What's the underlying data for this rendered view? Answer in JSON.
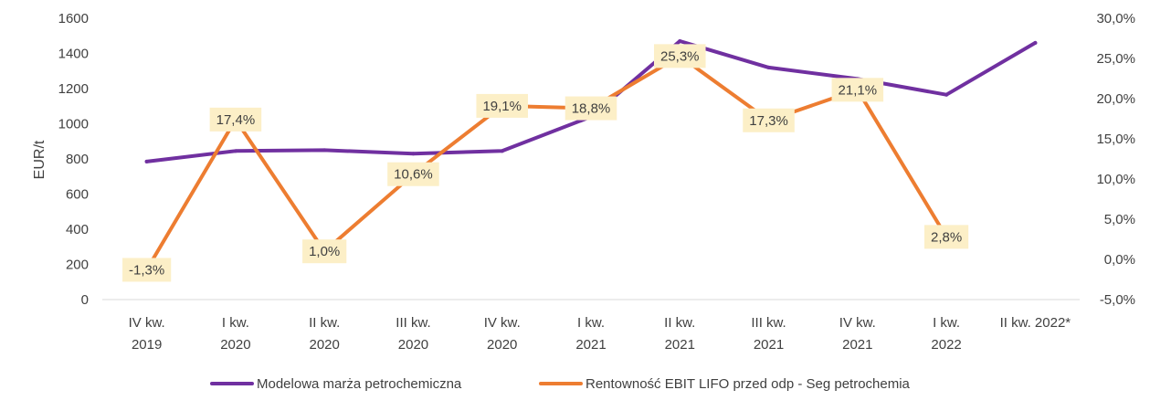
{
  "chart_data": {
    "type": "line",
    "categories": [
      [
        "IV kw.",
        "2019"
      ],
      [
        "I kw.",
        "2020"
      ],
      [
        "II kw.",
        "2020"
      ],
      [
        "III kw.",
        "2020"
      ],
      [
        "IV kw.",
        "2020"
      ],
      [
        "I kw.",
        "2021"
      ],
      [
        "II kw.",
        "2021"
      ],
      [
        "III kw.",
        "2021"
      ],
      [
        "IV kw.",
        "2021"
      ],
      [
        "I kw.",
        "2022"
      ],
      [
        "II kw. 2022*"
      ]
    ],
    "ylabel": "EUR/t",
    "ylim": [
      0,
      1600
    ],
    "y_ticks": [
      "0",
      "200",
      "400",
      "600",
      "800",
      "1000",
      "1200",
      "1400",
      "1600"
    ],
    "y2lim": [
      -5,
      30
    ],
    "y2_ticks": [
      "-5,0%",
      "0,0%",
      "5,0%",
      "10,0%",
      "15,0%",
      "20,0%",
      "25,0%",
      "30,0%"
    ],
    "grid": false,
    "legend_position": "bottom",
    "series": [
      {
        "name": "Modelowa marża petrochemiczna",
        "axis": "left",
        "color": "#7030A0",
        "values": [
          785,
          845,
          850,
          830,
          845,
          1040,
          1470,
          1320,
          1255,
          1165,
          1460
        ]
      },
      {
        "name": "Rentowność EBIT LIFO przed odp - Seg petrochemia",
        "axis": "right",
        "color": "#ED7D31",
        "values": [
          -1.3,
          17.4,
          1.0,
          10.6,
          19.1,
          18.8,
          25.3,
          17.3,
          21.1,
          2.8,
          null
        ],
        "labels": [
          "-1,3%",
          "17,4%",
          "1,0%",
          "10,6%",
          "19,1%",
          "18,8%",
          "25,3%",
          "17,3%",
          "21,1%",
          "2,8%",
          ""
        ],
        "label_bg": "#FCEFC7"
      }
    ]
  }
}
